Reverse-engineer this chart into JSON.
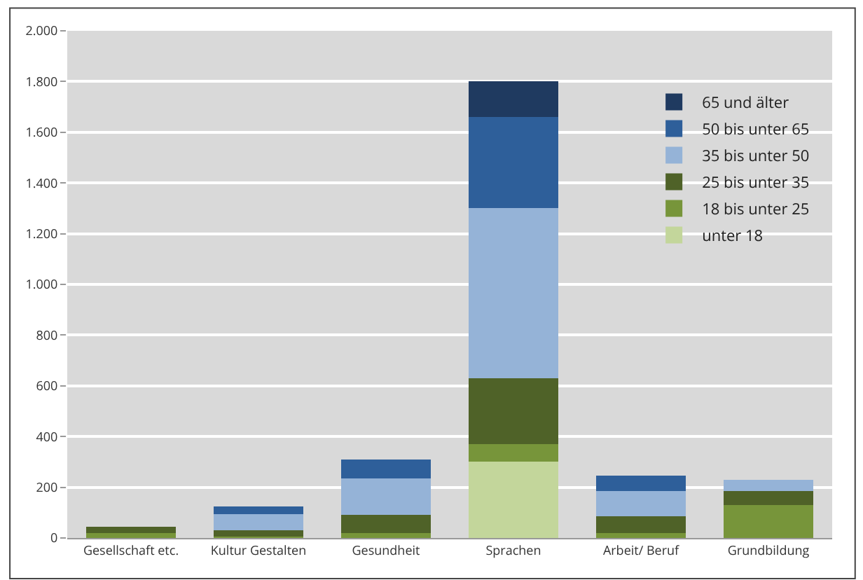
{
  "chart_data": {
    "type": "bar",
    "stacked": true,
    "categories": [
      "Gesellschaft etc.",
      "Kultur Gestalten",
      "Gesundheit",
      "Sprachen",
      "Arbeit/ Beruf",
      "Grundbildung"
    ],
    "series": [
      {
        "name": "unter 18",
        "color": "#c3d69b",
        "values": [
          null,
          0,
          0,
          300,
          0,
          0
        ]
      },
      {
        "name": "18 bis unter 25",
        "color": "#77953a",
        "values": [
          20,
          5,
          20,
          70,
          20,
          130
        ]
      },
      {
        "name": "25 bis unter 35",
        "color": "#4f6228",
        "values": [
          25,
          25,
          70,
          260,
          65,
          55
        ]
      },
      {
        "name": "35 bis unter 50",
        "color": "#95b3d7",
        "values": [
          null,
          65,
          145,
          670,
          100,
          45
        ]
      },
      {
        "name": "50 bis unter 65",
        "color": "#2e5f9a",
        "values": [
          0,
          30,
          75,
          360,
          60,
          0
        ]
      },
      {
        "name": "65 und älter",
        "color": "#1f3a60",
        "values": [
          0,
          0,
          0,
          140,
          0,
          0
        ]
      }
    ],
    "ylim": [
      0,
      2000
    ],
    "yticks": [
      0,
      200,
      400,
      600,
      800,
      {
        "value": 1000,
        "label": "1.000"
      },
      {
        "value": 1200,
        "label": "1.200"
      },
      {
        "value": 1400,
        "label": "1.400"
      },
      {
        "value": 1600,
        "label": "1.600"
      },
      {
        "value": 1800,
        "label": "1.800"
      },
      {
        "value": 2000,
        "label": "2.000"
      }
    ],
    "grid": "y",
    "legend": "top right"
  }
}
